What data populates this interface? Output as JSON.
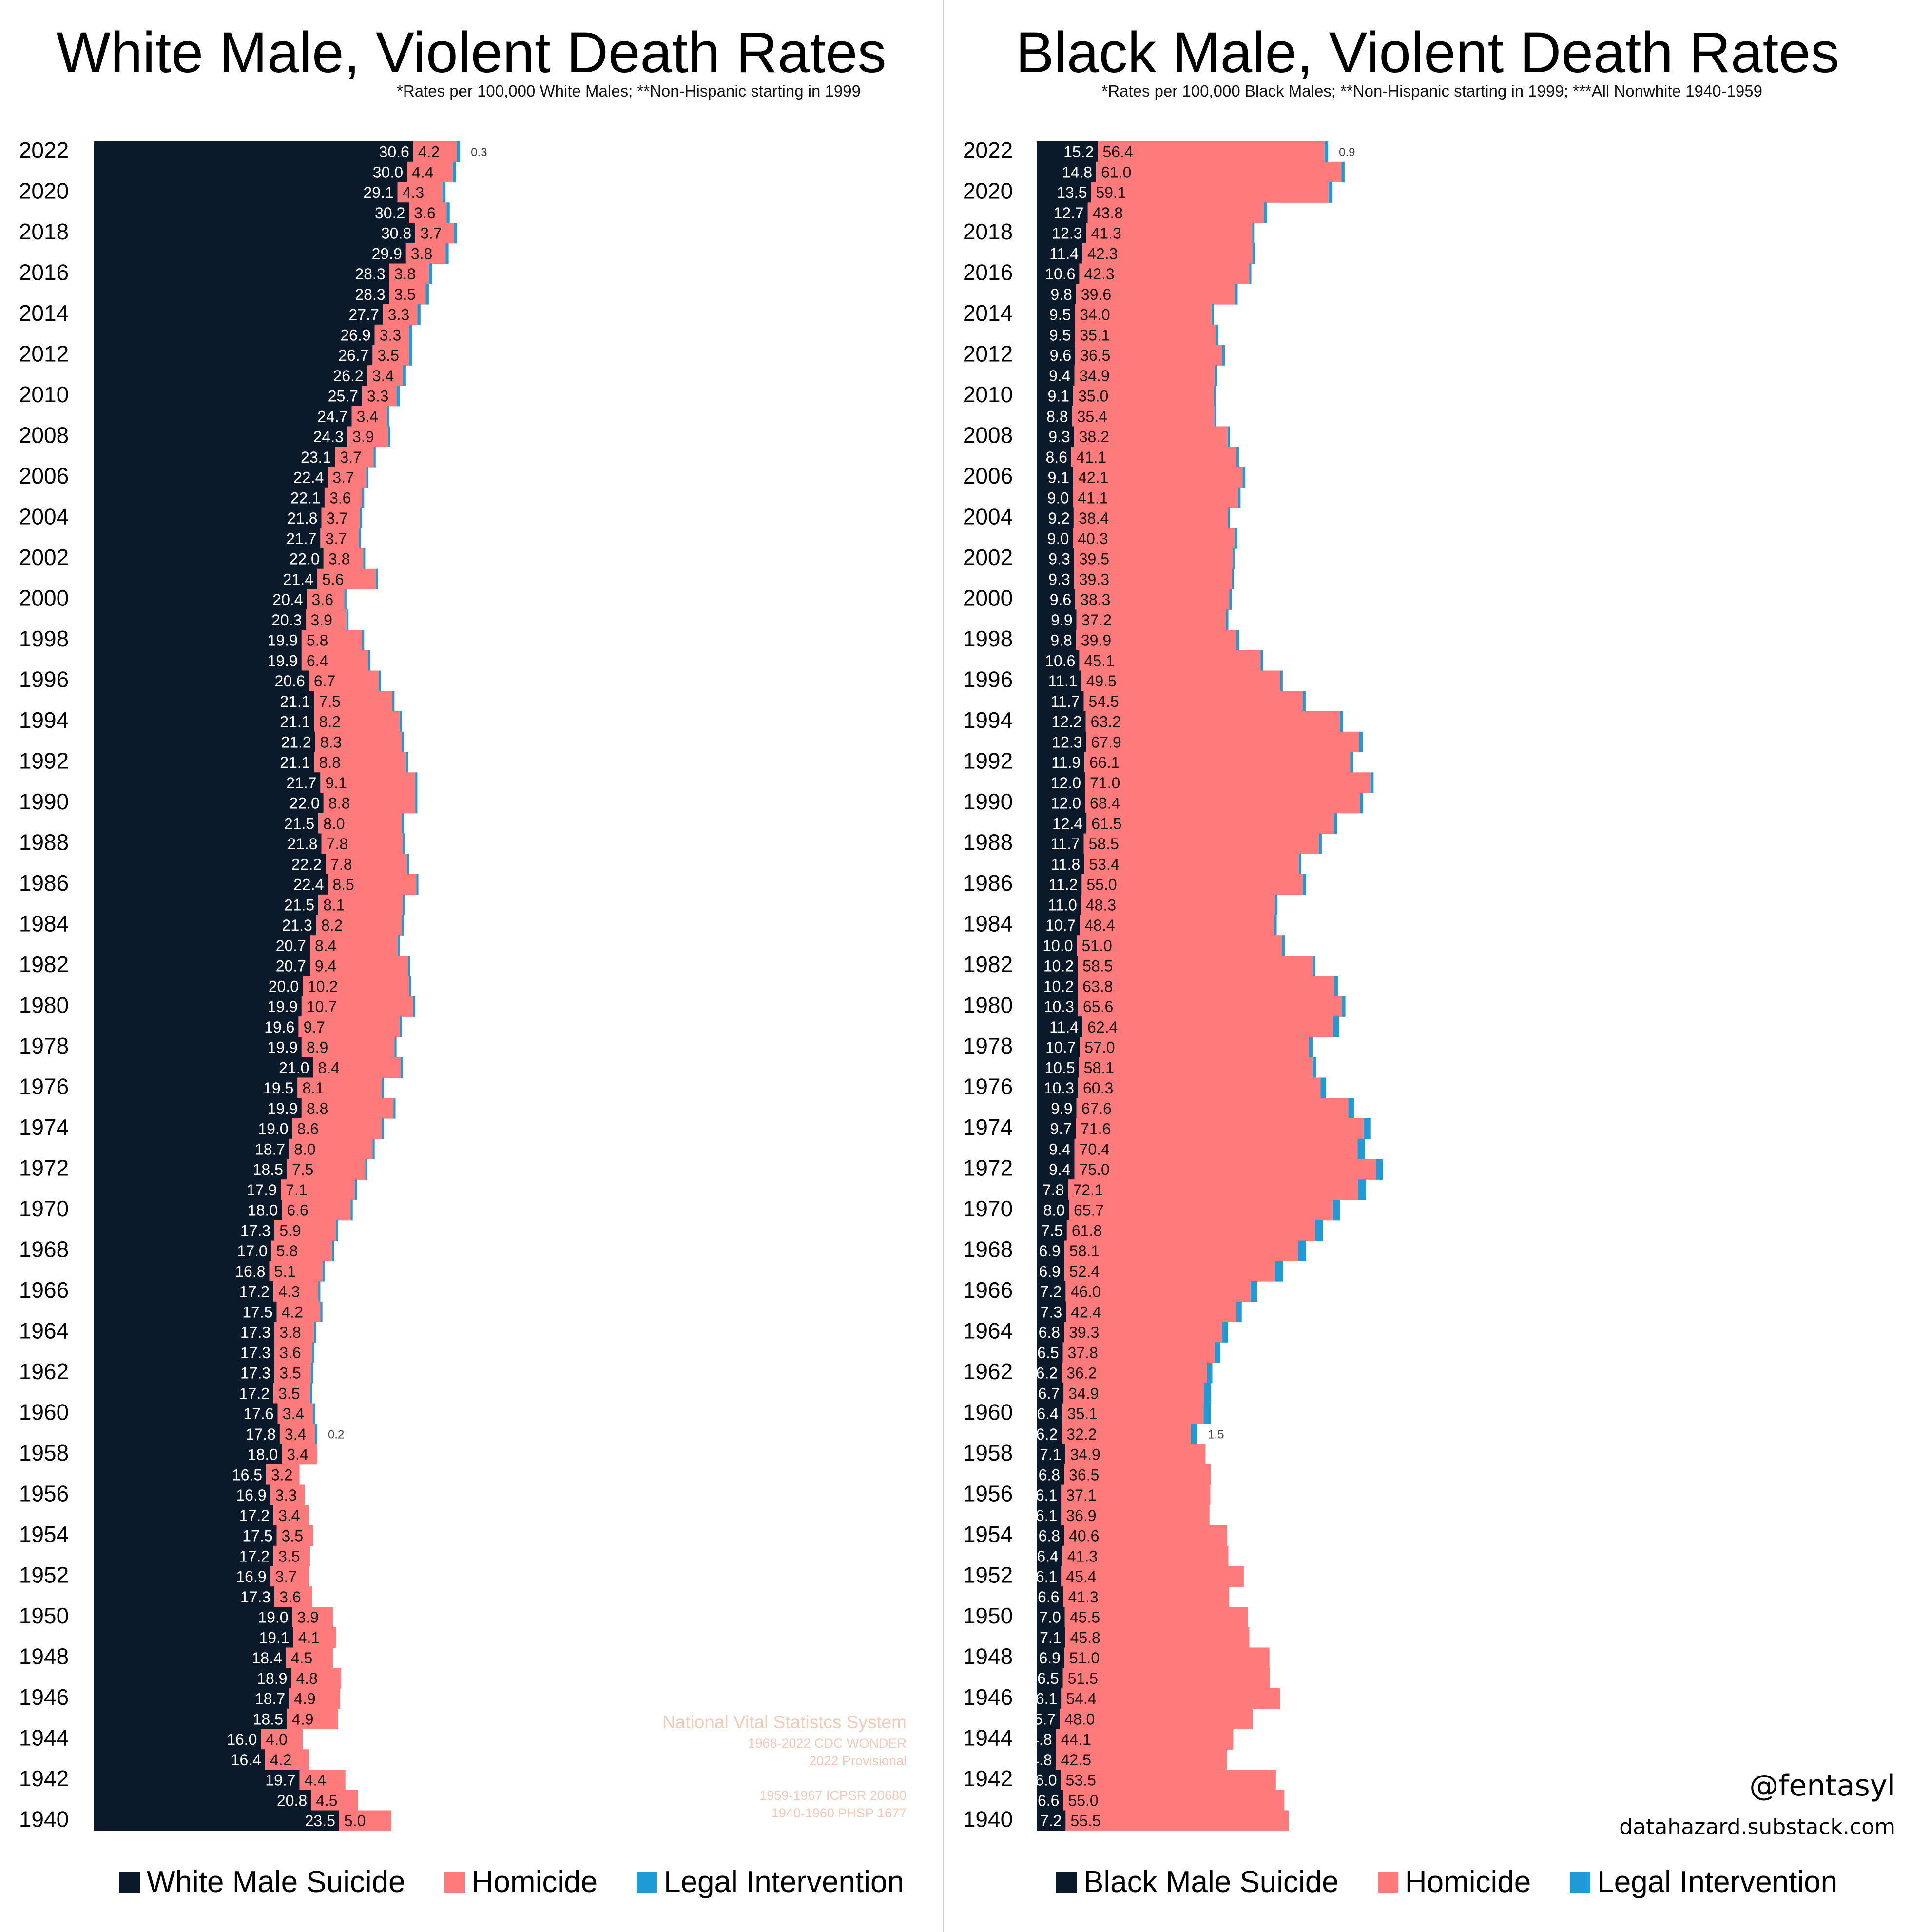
{
  "colors": {
    "suicide": "#0b1a2a",
    "homicide": "#ff7b7b",
    "legal": "#1e9bd7",
    "source": "#f4c9b8"
  },
  "left": {
    "title": "White Male, Violent Death Rates",
    "subtitle": "*Rates per 100,000 White Males; **Non-Hispanic starting in 1999",
    "legend": [
      "White Male Suicide",
      "Homicide",
      "Legal Intervention"
    ],
    "source_lines": [
      "National Vital Statistcs System",
      "1968-2022 CDC WONDER",
      "2022 Provisional",
      "1959-1967 ICPSR 20680",
      "1940-1960 PHSP 1677"
    ]
  },
  "right": {
    "title": "Black Male, Violent Death Rates",
    "subtitle": "*Rates per 100,000 Black Males; **Non-Hispanic starting in 1999; ***All Nonwhite 1940-1959",
    "legend": [
      "Black Male Suicide",
      "Homicide",
      "Legal Intervention"
    ],
    "handle": "@fentasyl",
    "site": "datahazard.substack.com"
  },
  "chart_data": [
    {
      "type": "bar",
      "stacked": true,
      "orientation": "horizontal",
      "title": "White Male, Violent Death Rates",
      "years": [
        2022,
        2021,
        2020,
        2019,
        2018,
        2017,
        2016,
        2015,
        2014,
        2013,
        2012,
        2011,
        2010,
        2009,
        2008,
        2007,
        2006,
        2005,
        2004,
        2003,
        2002,
        2001,
        2000,
        1999,
        1998,
        1997,
        1996,
        1995,
        1994,
        1993,
        1992,
        1991,
        1990,
        1989,
        1988,
        1987,
        1986,
        1985,
        1984,
        1983,
        1982,
        1981,
        1980,
        1979,
        1978,
        1977,
        1976,
        1975,
        1974,
        1973,
        1972,
        1971,
        1970,
        1969,
        1968,
        1967,
        1966,
        1965,
        1964,
        1963,
        1962,
        1961,
        1960,
        1959,
        1958,
        1957,
        1956,
        1955,
        1954,
        1953,
        1952,
        1951,
        1950,
        1949,
        1948,
        1947,
        1946,
        1945,
        1944,
        1943,
        1942,
        1941,
        1940
      ],
      "series": [
        {
          "name": "White Male Suicide",
          "values": [
            30.6,
            30.0,
            29.1,
            30.2,
            30.8,
            29.9,
            28.3,
            28.3,
            27.7,
            26.9,
            26.7,
            26.2,
            25.7,
            24.7,
            24.3,
            23.1,
            22.4,
            22.1,
            21.8,
            21.7,
            22.0,
            21.4,
            20.4,
            20.3,
            19.9,
            19.9,
            20.6,
            21.1,
            21.1,
            21.2,
            21.1,
            21.7,
            22.0,
            21.5,
            21.8,
            22.2,
            22.4,
            21.5,
            21.3,
            20.7,
            20.7,
            20.0,
            19.9,
            19.6,
            19.9,
            21.0,
            19.5,
            19.9,
            19.0,
            18.7,
            18.5,
            17.9,
            18.0,
            17.3,
            17.0,
            16.8,
            17.2,
            17.5,
            17.3,
            17.3,
            17.3,
            17.2,
            17.6,
            17.8,
            18.0,
            16.5,
            16.9,
            17.2,
            17.5,
            17.2,
            16.9,
            17.3,
            19.0,
            19.1,
            18.4,
            18.9,
            18.7,
            18.5,
            16.0,
            16.4,
            19.7,
            20.8,
            23.5
          ]
        },
        {
          "name": "Homicide",
          "values": [
            4.2,
            4.4,
            4.3,
            3.6,
            3.7,
            3.8,
            3.8,
            3.5,
            3.3,
            3.3,
            3.5,
            3.4,
            3.3,
            3.4,
            3.9,
            3.7,
            3.7,
            3.6,
            3.7,
            3.7,
            3.8,
            5.6,
            3.6,
            3.9,
            5.8,
            6.4,
            6.7,
            7.5,
            8.2,
            8.3,
            8.8,
            9.1,
            8.8,
            8.0,
            7.8,
            7.8,
            8.5,
            8.1,
            8.2,
            8.4,
            9.4,
            10.2,
            10.7,
            9.7,
            8.9,
            8.4,
            8.1,
            8.8,
            8.6,
            8.0,
            7.5,
            7.1,
            6.6,
            5.9,
            5.8,
            5.1,
            4.3,
            4.2,
            3.8,
            3.6,
            3.5,
            3.5,
            3.4,
            3.4,
            3.4,
            3.2,
            3.3,
            3.4,
            3.5,
            3.5,
            3.7,
            3.6,
            3.9,
            4.1,
            4.5,
            4.8,
            4.9,
            4.9,
            4.0,
            4.2,
            4.4,
            4.5,
            5.0
          ]
        },
        {
          "name": "Legal Intervention",
          "values": [
            0.3,
            0.3,
            0.3,
            0.3,
            0.3,
            0.3,
            0.3,
            0.3,
            0.3,
            0.3,
            0.3,
            0.3,
            0.3,
            0.2,
            0.2,
            0.2,
            0.2,
            0.2,
            0.2,
            0.2,
            0.2,
            0.2,
            0.2,
            0.2,
            0.2,
            0.2,
            0.2,
            0.2,
            0.2,
            0.2,
            0.2,
            0.2,
            0.2,
            0.2,
            0.2,
            0.2,
            0.2,
            0.2,
            0.2,
            0.2,
            0.2,
            0.2,
            0.2,
            0.2,
            0.2,
            0.2,
            0.2,
            0.2,
            0.2,
            0.2,
            0.2,
            0.2,
            0.2,
            0.2,
            0.2,
            0.2,
            0.2,
            0.2,
            0.2,
            0.2,
            0.2,
            0.2,
            0.2,
            0.2,
            0,
            0,
            0,
            0,
            0,
            0,
            0,
            0,
            0,
            0,
            0,
            0,
            0,
            0,
            0,
            0,
            0,
            0,
            0
          ]
        }
      ],
      "value_labels": [
        {
          "year": 2022,
          "series": "Legal Intervention",
          "text": "0.3"
        },
        {
          "year": 1959,
          "series": "Legal Intervention",
          "text": "0.2"
        }
      ],
      "xlim": [
        0,
        60
      ],
      "legend": "bottom"
    },
    {
      "type": "bar",
      "stacked": true,
      "orientation": "horizontal",
      "title": "Black Male, Violent Death Rates",
      "years": [
        2022,
        2021,
        2020,
        2019,
        2018,
        2017,
        2016,
        2015,
        2014,
        2013,
        2012,
        2011,
        2010,
        2009,
        2008,
        2007,
        2006,
        2005,
        2004,
        2003,
        2002,
        2001,
        2000,
        1999,
        1998,
        1997,
        1996,
        1995,
        1994,
        1993,
        1992,
        1991,
        1990,
        1989,
        1988,
        1987,
        1986,
        1985,
        1984,
        1983,
        1982,
        1981,
        1980,
        1979,
        1978,
        1977,
        1976,
        1975,
        1974,
        1973,
        1972,
        1971,
        1970,
        1969,
        1968,
        1967,
        1966,
        1965,
        1964,
        1963,
        1962,
        1961,
        1960,
        1959,
        1958,
        1957,
        1956,
        1955,
        1954,
        1953,
        1952,
        1951,
        1950,
        1949,
        1948,
        1947,
        1946,
        1945,
        1944,
        1943,
        1942,
        1941,
        1940
      ],
      "series": [
        {
          "name": "Black Male Suicide",
          "values": [
            15.2,
            14.8,
            13.5,
            12.7,
            12.3,
            11.4,
            10.6,
            9.8,
            9.5,
            9.5,
            9.6,
            9.4,
            9.1,
            8.8,
            9.3,
            8.6,
            9.1,
            9.0,
            9.2,
            9.0,
            9.3,
            9.3,
            9.6,
            9.9,
            9.8,
            10.6,
            11.1,
            11.7,
            12.2,
            12.3,
            11.9,
            12.0,
            12.0,
            12.4,
            11.7,
            11.8,
            11.2,
            11.0,
            10.7,
            10.0,
            10.2,
            10.2,
            10.3,
            11.4,
            10.7,
            10.5,
            10.3,
            9.9,
            9.7,
            9.4,
            9.4,
            7.8,
            8.0,
            7.5,
            6.9,
            6.9,
            7.2,
            7.3,
            6.8,
            6.5,
            6.2,
            6.7,
            6.4,
            6.2,
            7.1,
            6.8,
            6.1,
            6.1,
            6.8,
            6.4,
            6.1,
            6.6,
            7.0,
            7.1,
            6.9,
            6.5,
            6.1,
            5.7,
            4.8,
            4.8,
            6.0,
            6.6,
            7.2
          ]
        },
        {
          "name": "Homicide",
          "values": [
            56.4,
            61.0,
            59.1,
            43.8,
            41.3,
            42.3,
            42.3,
            39.6,
            34.0,
            35.1,
            36.5,
            34.9,
            35.0,
            35.4,
            38.2,
            41.1,
            42.1,
            41.1,
            38.4,
            40.3,
            39.5,
            39.3,
            38.3,
            37.2,
            39.9,
            45.1,
            49.5,
            54.5,
            63.2,
            67.9,
            66.1,
            71.0,
            68.4,
            61.5,
            58.5,
            53.4,
            55.0,
            48.3,
            48.4,
            51.0,
            58.5,
            63.8,
            65.6,
            62.4,
            57.0,
            58.1,
            60.3,
            67.6,
            71.6,
            70.4,
            75.0,
            72.1,
            65.7,
            61.8,
            58.1,
            52.4,
            46.0,
            42.4,
            39.3,
            37.8,
            36.2,
            34.9,
            35.1,
            32.2,
            34.9,
            36.5,
            37.1,
            36.9,
            40.6,
            41.3,
            45.4,
            41.3,
            45.5,
            45.8,
            51.0,
            51.5,
            54.4,
            48.0,
            44.1,
            42.5,
            53.5,
            55.0,
            55.5
          ]
        },
        {
          "name": "Legal Intervention",
          "values": [
            0.9,
            0.8,
            1.0,
            0.8,
            0.5,
            0.6,
            0.5,
            0.6,
            0.5,
            0.6,
            0.7,
            0.6,
            0.5,
            0.5,
            0.6,
            0.6,
            0.7,
            0.6,
            0.5,
            0.6,
            0.5,
            0.5,
            0.6,
            0.6,
            0.7,
            0.6,
            0.6,
            0.7,
            0.8,
            0.9,
            0.7,
            0.8,
            0.8,
            0.8,
            0.7,
            0.6,
            0.8,
            0.6,
            0.6,
            0.7,
            0.6,
            0.9,
            0.9,
            1.4,
            0.9,
            0.9,
            1.4,
            1.4,
            1.7,
            1.8,
            1.7,
            2.0,
            1.7,
            1.9,
            2.0,
            2.0,
            1.6,
            1.3,
            1.5,
            1.4,
            1.3,
            1.8,
            1.8,
            1.5,
            0,
            0,
            0,
            0,
            0,
            0,
            0,
            0,
            0,
            0,
            0,
            0,
            0,
            0,
            0,
            0,
            0,
            0,
            0
          ]
        }
      ],
      "value_labels": [
        {
          "year": 2022,
          "series": "Legal Intervention",
          "text": "0.9"
        },
        {
          "year": 1959,
          "series": "Legal Intervention",
          "text": "1.5"
        }
      ],
      "xlim": [
        0,
        95
      ],
      "legend": "bottom"
    }
  ]
}
